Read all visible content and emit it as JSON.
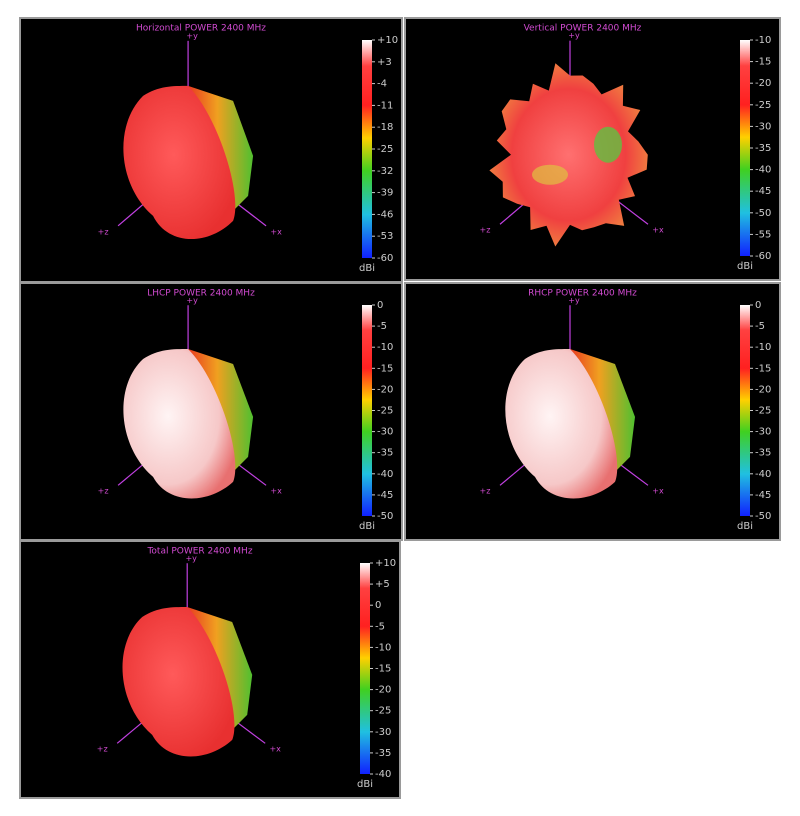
{
  "chart_data": [
    {
      "type": "radiation-pattern",
      "title": "Horizontal POWER 2400  MHz",
      "colorbar": {
        "lim": [
          -60,
          10
        ],
        "ticks": [
          {
            "value": 10,
            "label": "+10"
          },
          {
            "value": 3,
            "label": "+3"
          },
          -4,
          -11,
          -18,
          -25,
          -32,
          -39,
          -46,
          -53,
          -60
        ],
        "label": "dBi"
      },
      "axis_labels": [
        "+y",
        "+z",
        "+x"
      ]
    },
    {
      "type": "radiation-pattern",
      "title": "Vertical POWER 2400  MHz",
      "colorbar": {
        "lim": [
          -60,
          -10
        ],
        "ticks": [
          -10,
          -15,
          -20,
          -25,
          -30,
          -35,
          -40,
          -45,
          -50,
          -55,
          -60
        ],
        "label": "dBi"
      },
      "axis_labels": [
        "+y",
        "+z",
        "+x"
      ]
    },
    {
      "type": "radiation-pattern",
      "title": "LHCP POWER 2400  MHz",
      "colorbar": {
        "lim": [
          -50,
          0
        ],
        "ticks": [
          0,
          -5,
          -10,
          -15,
          -20,
          -25,
          -30,
          -35,
          -40,
          -45,
          -50
        ],
        "label": "dBi"
      },
      "axis_labels": [
        "+y",
        "+z",
        "+x"
      ]
    },
    {
      "type": "radiation-pattern",
      "title": "RHCP POWER 2400  MHz",
      "colorbar": {
        "lim": [
          -50,
          0
        ],
        "ticks": [
          0,
          -5,
          -10,
          -15,
          -20,
          -25,
          -30,
          -35,
          -40,
          -45,
          -50
        ],
        "label": "dBi"
      },
      "axis_labels": [
        "+y",
        "+z",
        "+x"
      ]
    },
    {
      "type": "radiation-pattern",
      "title": "Total POWER 2400  MHz",
      "colorbar": {
        "lim": [
          -40,
          10
        ],
        "ticks": [
          {
            "value": 10,
            "label": "+10"
          },
          {
            "value": 5,
            "label": "+5"
          },
          0,
          -5,
          -10,
          -15,
          -20,
          -25,
          -30,
          -35,
          -40
        ],
        "label": "dBi"
      },
      "axis_labels": [
        "+y",
        "+z",
        "+x"
      ]
    }
  ]
}
